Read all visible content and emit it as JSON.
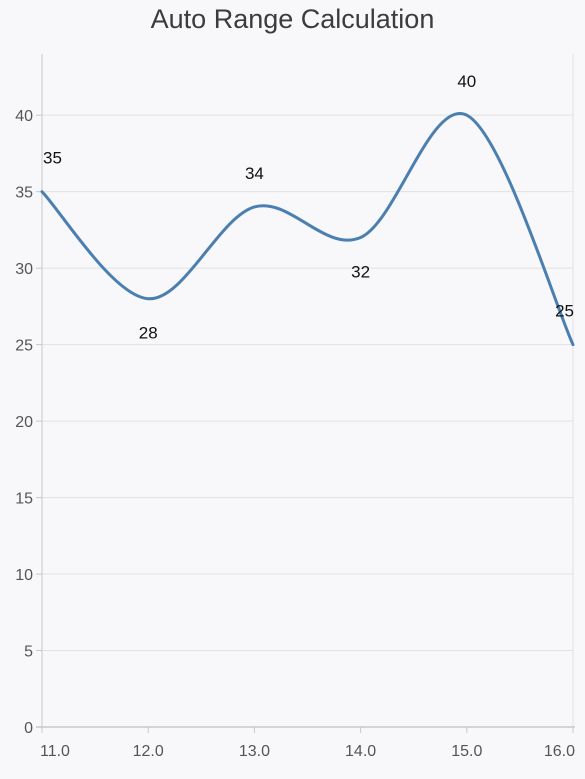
{
  "chart_data": {
    "type": "line",
    "title": "Auto Range Calculation",
    "xlabel": "",
    "ylabel": "",
    "x": [
      11.0,
      12.0,
      13.0,
      14.0,
      15.0,
      16.0
    ],
    "x_tick_labels": [
      "11.0",
      "12.0",
      "13.0",
      "14.0",
      "15.0",
      "16.0"
    ],
    "y_tick_labels": [
      "0",
      "5",
      "10",
      "15",
      "20",
      "25",
      "30",
      "35",
      "40"
    ],
    "xlim": [
      11.0,
      16.0
    ],
    "ylim": [
      0,
      44
    ],
    "grid": true,
    "curve": "spline",
    "series": [
      {
        "values": [
          35,
          28,
          34,
          32,
          40,
          25
        ],
        "data_labels": [
          "35",
          "28",
          "34",
          "32",
          "40",
          "25"
        ],
        "color": "#4a7fb0"
      }
    ]
  },
  "colors": {
    "background": "#f8f7fa",
    "gridline": "#e2e2e2",
    "axis": "#c8c8c8",
    "line": "#4a7fb0"
  }
}
